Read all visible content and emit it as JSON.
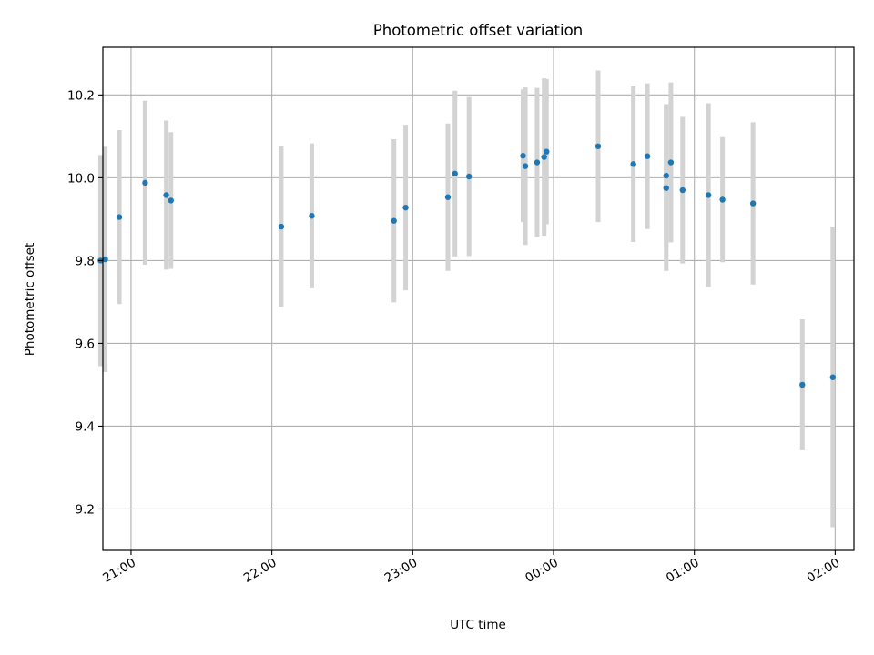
{
  "chart_data": {
    "type": "scatter",
    "title": "Photometric offset variation",
    "xlabel": "UTC time",
    "ylabel": "Photometric offset",
    "x_axis": "time",
    "ylim": [
      9.1,
      10.315
    ],
    "xlim": [
      "20:48",
      "02:08"
    ],
    "x_ticks": [
      "21:00",
      "22:00",
      "23:00",
      "00:00",
      "01:00",
      "02:00"
    ],
    "y_ticks": [
      "9.2",
      "9.4",
      "9.6",
      "9.8",
      "10.0",
      "10.2"
    ],
    "grid": true,
    "marker_color": "#1f77b4",
    "errorbar_color": "#d3d3d3",
    "points": [
      {
        "time": "20:47",
        "y": 9.8,
        "err": 0.255
      },
      {
        "time": "20:49",
        "y": 9.803,
        "err": 0.272
      },
      {
        "time": "20:55",
        "y": 9.905,
        "err": 0.21
      },
      {
        "time": "21:06",
        "y": 9.988,
        "err": 0.198
      },
      {
        "time": "21:15",
        "y": 9.958,
        "err": 0.18
      },
      {
        "time": "21:17",
        "y": 9.945,
        "err": 0.165
      },
      {
        "time": "22:04",
        "y": 9.882,
        "err": 0.194
      },
      {
        "time": "22:17",
        "y": 9.908,
        "err": 0.175
      },
      {
        "time": "22:52",
        "y": 9.896,
        "err": 0.197
      },
      {
        "time": "22:57",
        "y": 9.928,
        "err": 0.2
      },
      {
        "time": "23:15",
        "y": 9.953,
        "err": 0.178
      },
      {
        "time": "23:18",
        "y": 10.01,
        "err": 0.2
      },
      {
        "time": "23:24",
        "y": 10.003,
        "err": 0.192
      },
      {
        "time": "23:47",
        "y": 10.053,
        "err": 0.16
      },
      {
        "time": "23:48",
        "y": 10.028,
        "err": 0.19
      },
      {
        "time": "23:53",
        "y": 10.037,
        "err": 0.18
      },
      {
        "time": "23:56",
        "y": 10.05,
        "err": 0.19
      },
      {
        "time": "23:57",
        "y": 10.063,
        "err": 0.175
      },
      {
        "time": "00:19",
        "y": 10.076,
        "err": 0.183
      },
      {
        "time": "00:34",
        "y": 10.033,
        "err": 0.188
      },
      {
        "time": "00:40",
        "y": 10.052,
        "err": 0.176
      },
      {
        "time": "00:48",
        "y": 10.005,
        "err": 0.173
      },
      {
        "time": "00:48",
        "y": 9.975,
        "err": 0.2
      },
      {
        "time": "00:50",
        "y": 10.037,
        "err": 0.193
      },
      {
        "time": "00:55",
        "y": 9.97,
        "err": 0.177
      },
      {
        "time": "01:06",
        "y": 9.958,
        "err": 0.222
      },
      {
        "time": "01:12",
        "y": 9.947,
        "err": 0.151
      },
      {
        "time": "01:25",
        "y": 9.938,
        "err": 0.196
      },
      {
        "time": "01:46",
        "y": 9.5,
        "err": 0.158
      },
      {
        "time": "01:59",
        "y": 9.518,
        "err": 0.362
      }
    ]
  }
}
